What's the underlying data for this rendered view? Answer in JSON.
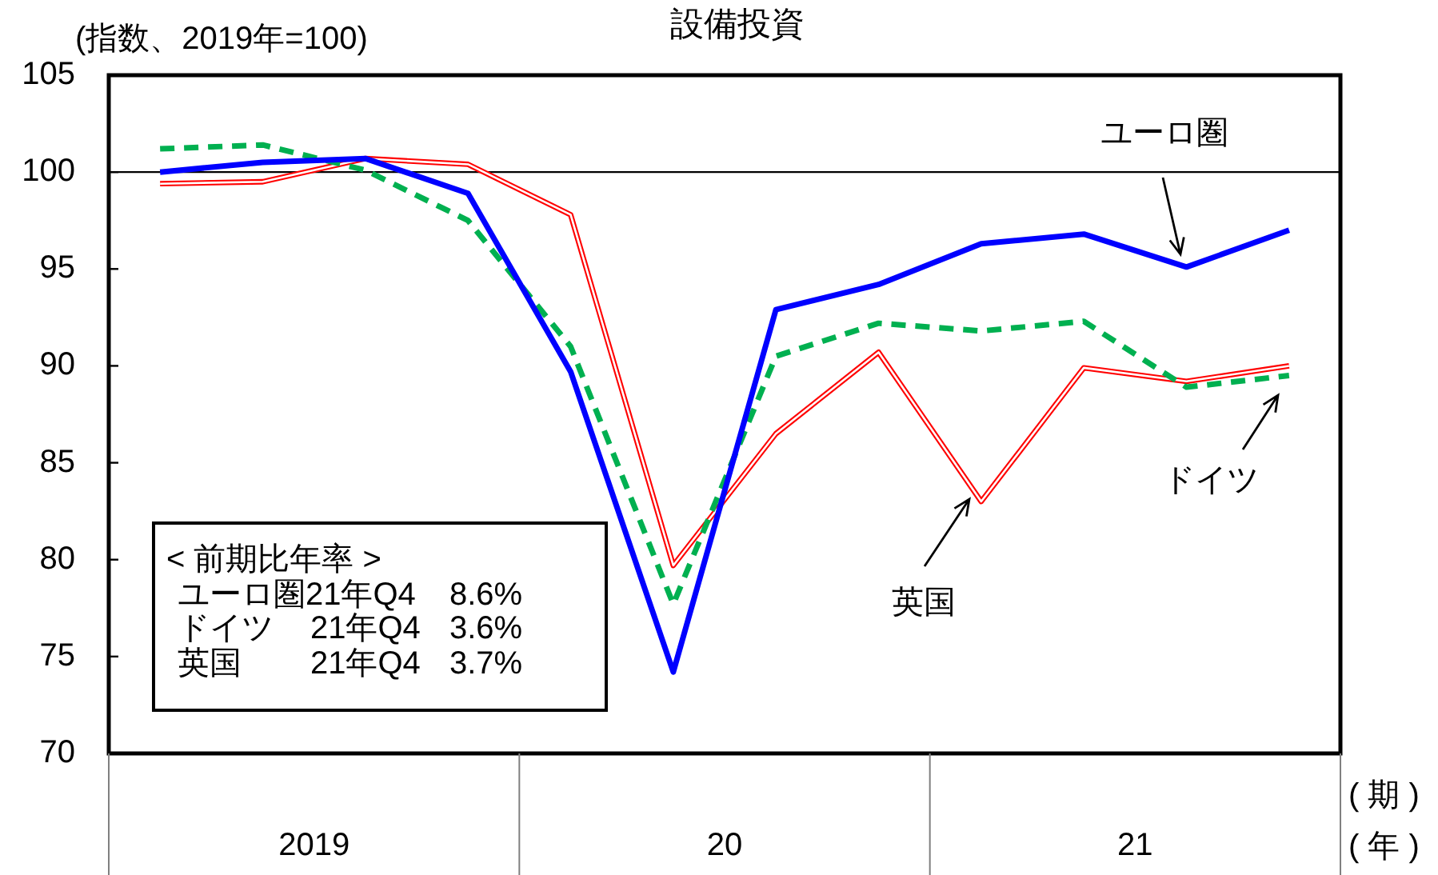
{
  "chart_data": {
    "type": "line",
    "title": "設備投資",
    "ylabel": "(指数、2019年=100)",
    "xlabel": "( 期 )",
    "annotations": [
      "( 年 )",
      "2019",
      "20",
      "21",
      "< 前期比年率 >",
      "ユーロ圏21年Q4 8.6%",
      "ドイツ 21年Q4 3.6%",
      "英国 21年Q4 3.7%"
    ],
    "categories": [
      null,
      null,
      null,
      null,
      null,
      null,
      null,
      null,
      null,
      null,
      null,
      null
    ],
    "ylim": [
      70,
      105
    ],
    "yticks": [
      70,
      75,
      80,
      85,
      90,
      95,
      100,
      105
    ],
    "ref_lines": [
      {
        "axis": "y",
        "value": 100,
        "color": "#000000"
      }
    ],
    "grid": false,
    "legend": false,
    "marker": "none",
    "series": [
      {
        "name": "ユーロ圏",
        "color": "#0000ff",
        "line_style": "solid",
        "values": [
          100.0,
          100.5,
          100.7,
          98.9,
          89.7,
          74.2,
          92.9,
          94.2,
          96.3,
          96.8,
          95.1,
          97.0
        ]
      },
      {
        "name": "ドイツ",
        "color": "#00b050",
        "line_style": "dashed",
        "values": [
          101.2,
          101.4,
          100.1,
          97.5,
          91.0,
          77.7,
          90.5,
          92.2,
          91.8,
          92.3,
          88.9,
          89.5
        ]
      },
      {
        "name": "英国",
        "color": "#ff0000",
        "line_style": "solid",
        "values": [
          99.4,
          99.5,
          100.7,
          100.4,
          97.8,
          79.7,
          86.5,
          90.7,
          83.0,
          89.9,
          89.2,
          90.0
        ]
      }
    ]
  }
}
